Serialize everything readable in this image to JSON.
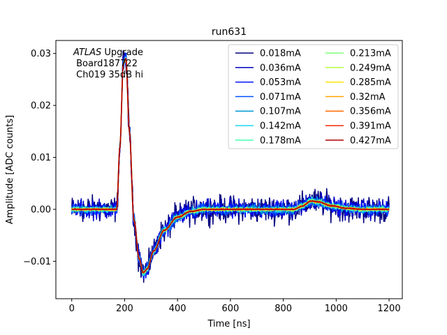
{
  "chart_data": {
    "type": "line",
    "title": "run631",
    "xlabel": "Time [ns]",
    "ylabel": "Amplitude [ADC counts]",
    "xlim": [
      -60,
      1250
    ],
    "ylim": [
      -0.0172,
      0.0325
    ],
    "xticks": [
      0,
      200,
      400,
      600,
      800,
      1000,
      1200
    ],
    "xtick_labels": [
      "0",
      "200",
      "400",
      "600",
      "800",
      "1000",
      "1200"
    ],
    "yticks": [
      -0.01,
      0.0,
      0.01,
      0.02,
      0.03
    ],
    "ytick_labels": [
      "−0.01",
      "0.00",
      "0.01",
      "0.02",
      "0.03"
    ],
    "grid": false,
    "legend_placement": "top-right",
    "legend_columns": 2,
    "annotation": {
      "experiment": "ATLAS",
      "experiment_suffix": " Upgrade",
      "line2": " Board187722",
      "line3": " Ch019 35dB hi"
    },
    "pulse_shape": {
      "t": [
        0,
        170,
        182,
        195,
        205,
        218,
        235,
        255,
        270,
        285,
        310,
        350,
        400,
        450,
        500,
        560,
        620,
        700,
        780,
        840,
        870,
        905,
        935,
        980,
        1040,
        1100,
        1200
      ],
      "y": [
        0.0,
        0.0,
        0.012,
        0.028,
        0.029,
        0.015,
        -0.002,
        -0.0095,
        -0.0122,
        -0.0115,
        -0.008,
        -0.004,
        -0.0015,
        -0.0004,
        0.0,
        0.0,
        0.0,
        0.0,
        0.0,
        0.0,
        0.0006,
        0.0016,
        0.0014,
        0.0007,
        0.0002,
        0.0,
        0.0
      ]
    },
    "series": [
      {
        "name": "0.018mA",
        "color": "#00007f",
        "noise": 0.0022
      },
      {
        "name": "0.036mA",
        "color": "#0000c4",
        "noise": 0.0016
      },
      {
        "name": "0.053mA",
        "color": "#0010ff",
        "noise": 0.0012
      },
      {
        "name": "0.071mA",
        "color": "#0050ff",
        "noise": 0.0009
      },
      {
        "name": "0.107mA",
        "color": "#0098d4",
        "noise": 0.0007
      },
      {
        "name": "0.142mA",
        "color": "#1ad6f0",
        "noise": 0.0005
      },
      {
        "name": "0.178mA",
        "color": "#46ffb1",
        "noise": 0.0004
      },
      {
        "name": "0.213mA",
        "color": "#7dff7a",
        "noise": 0.0003
      },
      {
        "name": "0.249mA",
        "color": "#b4ff43",
        "noise": 0.00025
      },
      {
        "name": "0.285mA",
        "color": "#ffe500",
        "noise": 0.0002
      },
      {
        "name": "0.32mA",
        "color": "#ffa500",
        "noise": 0.00015
      },
      {
        "name": "0.356mA",
        "color": "#ff6a00",
        "noise": 0.00012
      },
      {
        "name": "0.391mA",
        "color": "#f02800",
        "noise": 0.0001
      },
      {
        "name": "0.427mA",
        "color": "#b00000",
        "noise": 8e-05
      }
    ]
  }
}
